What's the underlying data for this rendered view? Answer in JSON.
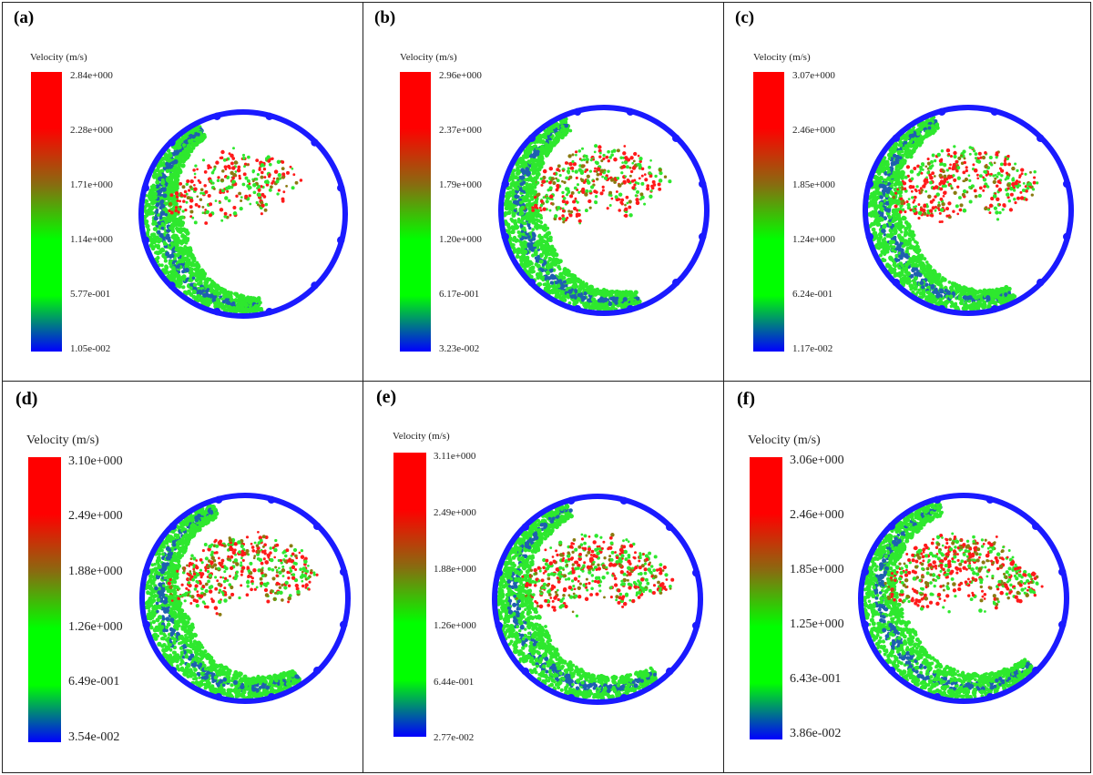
{
  "figure": {
    "panels": [
      {
        "label": "(a)",
        "legend_title": "Velocity (m/s)",
        "ticks": [
          "2.84e+000",
          "2.28e+000",
          "1.71e+000",
          "1.14e+000",
          "5.77e-001",
          "1.05e-002"
        ]
      },
      {
        "label": "(b)",
        "legend_title": "Velocity (m/s)",
        "ticks": [
          "2.96e+000",
          "2.37e+000",
          "1.79e+000",
          "1.20e+000",
          "6.17e-001",
          "3.23e-002"
        ]
      },
      {
        "label": "(c)",
        "legend_title": "Velocity (m/s)",
        "ticks": [
          "3.07e+000",
          "2.46e+000",
          "1.85e+000",
          "1.24e+000",
          "6.24e-001",
          "1.17e-002"
        ]
      },
      {
        "label": "(d)",
        "legend_title": "Velocity (m/s)",
        "ticks": [
          "3.10e+000",
          "2.49e+000",
          "1.88e+000",
          "1.26e+000",
          "6.49e-001",
          "3.54e-002"
        ]
      },
      {
        "label": "(e)",
        "legend_title": "Velocity (m/s)",
        "ticks": [
          "3.11e+000",
          "2.49e+000",
          "1.88e+000",
          "1.26e+000",
          "6.44e-001",
          "2.77e-002"
        ]
      },
      {
        "label": "(f)",
        "legend_title": "Velocity (m/s)",
        "ticks": [
          "3.06e+000",
          "2.46e+000",
          "1.85e+000",
          "1.25e+000",
          "6.43e-001",
          "3.86e-002"
        ]
      }
    ],
    "colormap": [
      "#ff0000",
      "#ff0000",
      "#8a6a10",
      "#00ff00",
      "#00ff00",
      "#0000ff"
    ],
    "colors": {
      "drum_ring": "#1a1aff",
      "slow_particle": "#1f5fb0",
      "mid_particle": "#2ee82e",
      "transition_particle": "#8a7a10",
      "fast_particle": "#ff1a1a"
    }
  }
}
